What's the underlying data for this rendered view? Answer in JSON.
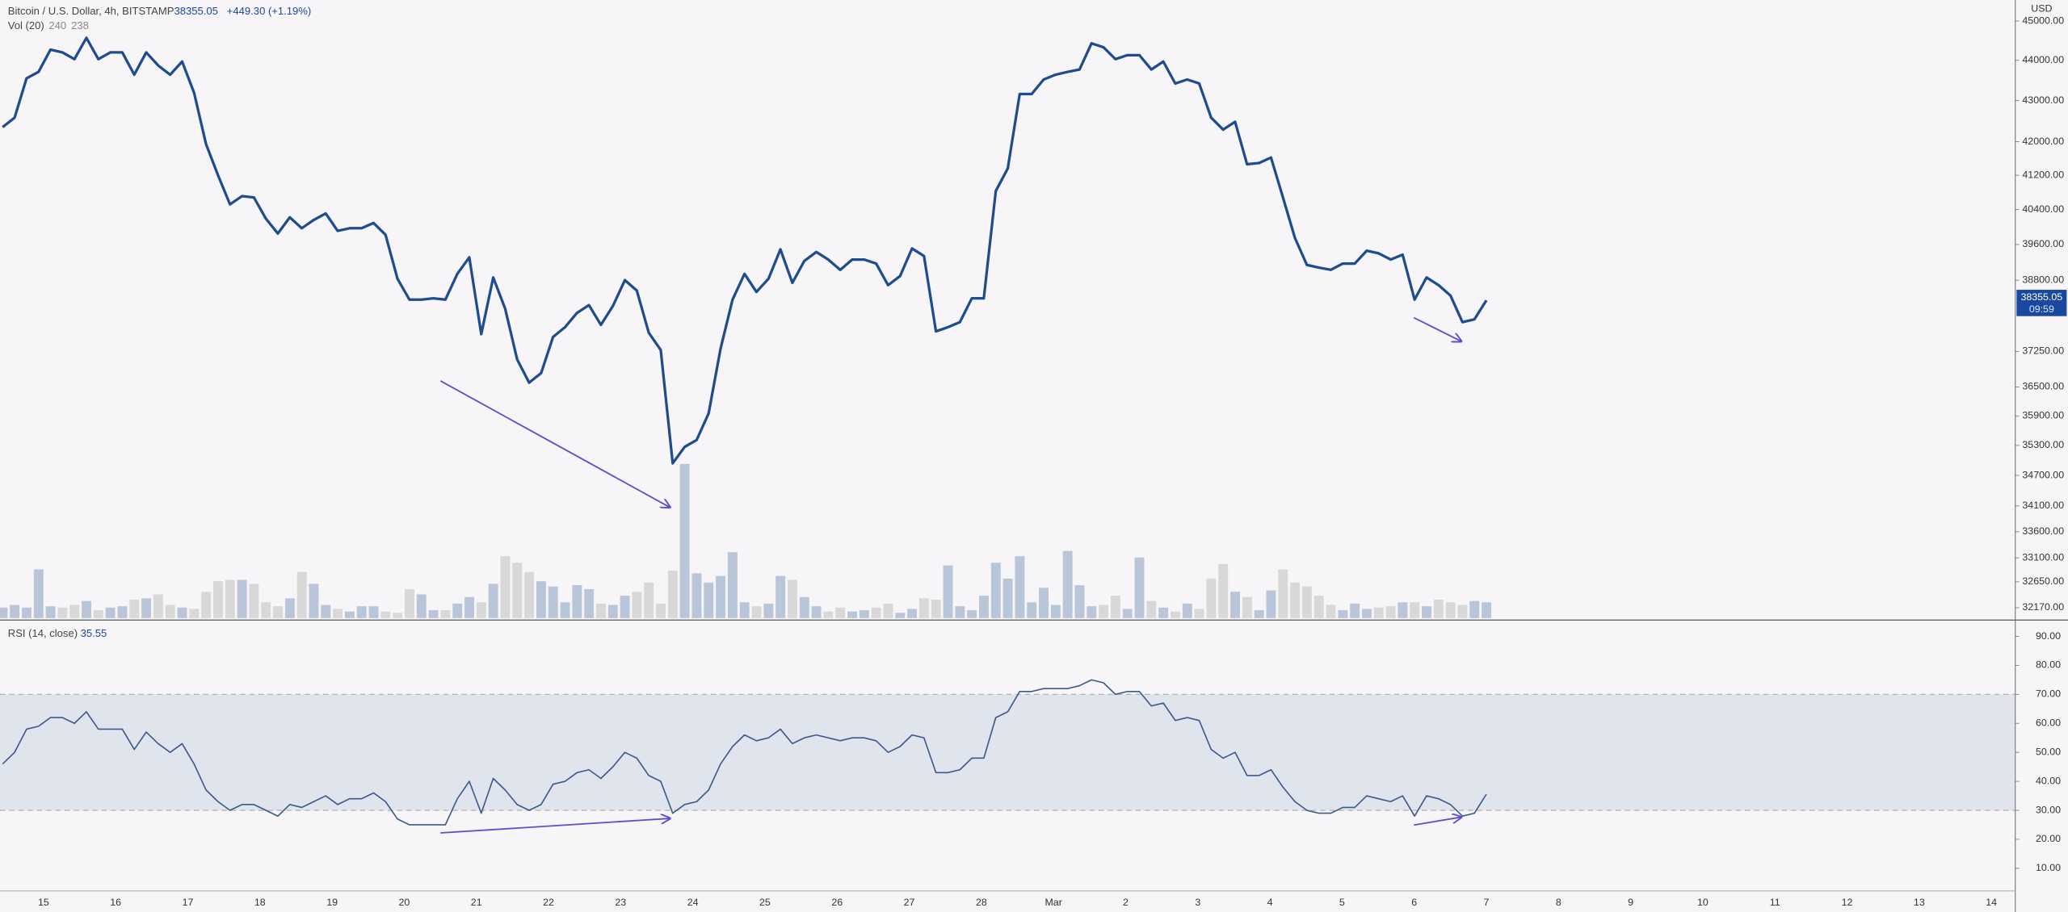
{
  "chart_data": [
    {
      "type": "line",
      "title": "Bitcoin / U.S. Dollar, 4h, BITSTAMP",
      "change_label": "+449.30 (+1.19%)",
      "countdown": "09:59",
      "unit": "USD",
      "color": "#1e4d8f",
      "log_scale": true,
      "x_labels": [
        "15",
        "16",
        "17",
        "18",
        "19",
        "20",
        "21",
        "22",
        "23",
        "24",
        "25",
        "26",
        "27",
        "28",
        "Mar",
        "2",
        "3",
        "4",
        "5",
        "6",
        "7",
        "8",
        "9",
        "10",
        "11",
        "12",
        "13",
        "14"
      ],
      "values": [
        42350,
        42580,
        43550,
        43710,
        44270,
        44200,
        44030,
        44570,
        44030,
        44200,
        44200,
        43640,
        44200,
        43870,
        43640,
        43970,
        43190,
        41940,
        41200,
        40520,
        40710,
        40680,
        40190,
        39850,
        40220,
        39970,
        40160,
        40310,
        39910,
        39970,
        39970,
        40090,
        39820,
        38830,
        38370,
        38370,
        38400,
        38370,
        38940,
        39310,
        37620,
        38860,
        38170,
        37080,
        36590,
        36790,
        37560,
        37770,
        38080,
        38250,
        37820,
        38230,
        38800,
        38570,
        37650,
        37280,
        34940,
        35270,
        35410,
        35950,
        37310,
        38370,
        38940,
        38540,
        38830,
        39490,
        38740,
        39230,
        39430,
        39260,
        39030,
        39260,
        39260,
        39170,
        38690,
        38890,
        39510,
        39340,
        37680,
        37770,
        37880,
        38400,
        38400,
        40830,
        41360,
        43160,
        43160,
        43520,
        43640,
        43710,
        43770,
        44430,
        44330,
        44030,
        44130,
        44130,
        43770,
        43970,
        43420,
        43520,
        43420,
        42580,
        42290,
        42480,
        41460,
        41490,
        41620,
        40680,
        39750,
        39140,
        39080,
        39030,
        39170,
        39170,
        39460,
        39400,
        39260,
        39370,
        38370,
        38860,
        38690,
        38460,
        37880,
        37940,
        38355.05
      ],
      "ylim": [
        31955,
        45545
      ],
      "yticks": [
        {
          "value": 45000,
          "label": "45000.00"
        },
        {
          "value": 44000,
          "label": "44000.00"
        },
        {
          "value": 43000,
          "label": "43000.00"
        },
        {
          "value": 42000,
          "label": "42000.00"
        },
        {
          "value": 41200,
          "label": "41200.00"
        },
        {
          "value": 40400,
          "label": "40400.00"
        },
        {
          "value": 39600,
          "label": "39600.00"
        },
        {
          "value": 38800,
          "label": "38800.00"
        },
        {
          "value": 37250,
          "label": "37250.00"
        },
        {
          "value": 36500,
          "label": "36500.00"
        },
        {
          "value": 35900,
          "label": "35900.00"
        },
        {
          "value": 35300,
          "label": "35300.00"
        },
        {
          "value": 34700,
          "label": "34700.00"
        },
        {
          "value": 34100,
          "label": "34100.00"
        },
        {
          "value": 33600,
          "label": "33600.00"
        },
        {
          "value": 33100,
          "label": "33100.00"
        },
        {
          "value": 32650,
          "label": "32650.00"
        },
        {
          "value": 32170,
          "label": "32170.00"
        }
      ]
    },
    {
      "type": "bar",
      "title": "Vol (20)",
      "legend_values": [
        240,
        238
      ],
      "up_color": "#b9c6da",
      "down_color": "#d8d8d8",
      "values": [
        160,
        200,
        160,
        740,
        180,
        160,
        200,
        260,
        120,
        160,
        180,
        280,
        300,
        360,
        200,
        160,
        140,
        400,
        560,
        580,
        580,
        520,
        240,
        180,
        300,
        700,
        520,
        200,
        140,
        100,
        180,
        180,
        100,
        80,
        440,
        360,
        120,
        120,
        220,
        320,
        240,
        520,
        940,
        840,
        700,
        560,
        480,
        240,
        500,
        440,
        220,
        200,
        340,
        400,
        540,
        220,
        720,
        2340,
        680,
        540,
        640,
        1000,
        240,
        180,
        220,
        640,
        580,
        320,
        180,
        100,
        160,
        100,
        120,
        160,
        220,
        80,
        140,
        300,
        280,
        800,
        180,
        120,
        340,
        840,
        600,
        940,
        240,
        460,
        200,
        1020,
        500,
        180,
        200,
        340,
        140,
        920,
        260,
        160,
        100,
        220,
        140,
        600,
        820,
        400,
        320,
        120,
        420,
        740,
        540,
        480,
        340,
        200,
        120,
        220,
        140,
        160,
        180,
        240,
        240,
        180,
        280,
        240,
        200,
        260,
        240
      ]
    },
    {
      "type": "line",
      "title": "RSI (14, close)",
      "color": "#3c5a8c",
      "band_color": "#d5dde8",
      "bands": [
        30,
        70
      ],
      "values": [
        46,
        50,
        58,
        59,
        62,
        62,
        60,
        64,
        58,
        58,
        58,
        51,
        57,
        53,
        50,
        53,
        46,
        37,
        33,
        30,
        32,
        32,
        30,
        28,
        32,
        31,
        33,
        35,
        32,
        34,
        34,
        36,
        33,
        27,
        25,
        25,
        25,
        25,
        34,
        40,
        29,
        41,
        37,
        32,
        30,
        32,
        39,
        40,
        43,
        44,
        41,
        45,
        50,
        48,
        42,
        40,
        29,
        32,
        33,
        37,
        46,
        52,
        56,
        54,
        55,
        58,
        53,
        55,
        56,
        55,
        54,
        55,
        55,
        54,
        50,
        52,
        56,
        55,
        43,
        43,
        44,
        48,
        48,
        62,
        64,
        71,
        71,
        72,
        72,
        72,
        73,
        75,
        74,
        70,
        71,
        71,
        66,
        67,
        61,
        62,
        61,
        51,
        48,
        50,
        42,
        42,
        44,
        38,
        33,
        30,
        29,
        29,
        31,
        31,
        35,
        34,
        33,
        35,
        28,
        35,
        34,
        32,
        28,
        29,
        35.55
      ],
      "ylim": [
        2.2,
        95.4
      ],
      "yticks": [
        {
          "value": 90,
          "label": "90.00"
        },
        {
          "value": 80,
          "label": "80.00"
        },
        {
          "value": 70,
          "label": "70.00"
        },
        {
          "value": 60,
          "label": "60.00"
        },
        {
          "value": 50,
          "label": "50.00"
        },
        {
          "value": 40,
          "label": "40.00"
        },
        {
          "value": 30,
          "label": "30.00"
        },
        {
          "value": 20,
          "label": "20.00"
        },
        {
          "value": 10,
          "label": "10.00"
        }
      ]
    }
  ]
}
